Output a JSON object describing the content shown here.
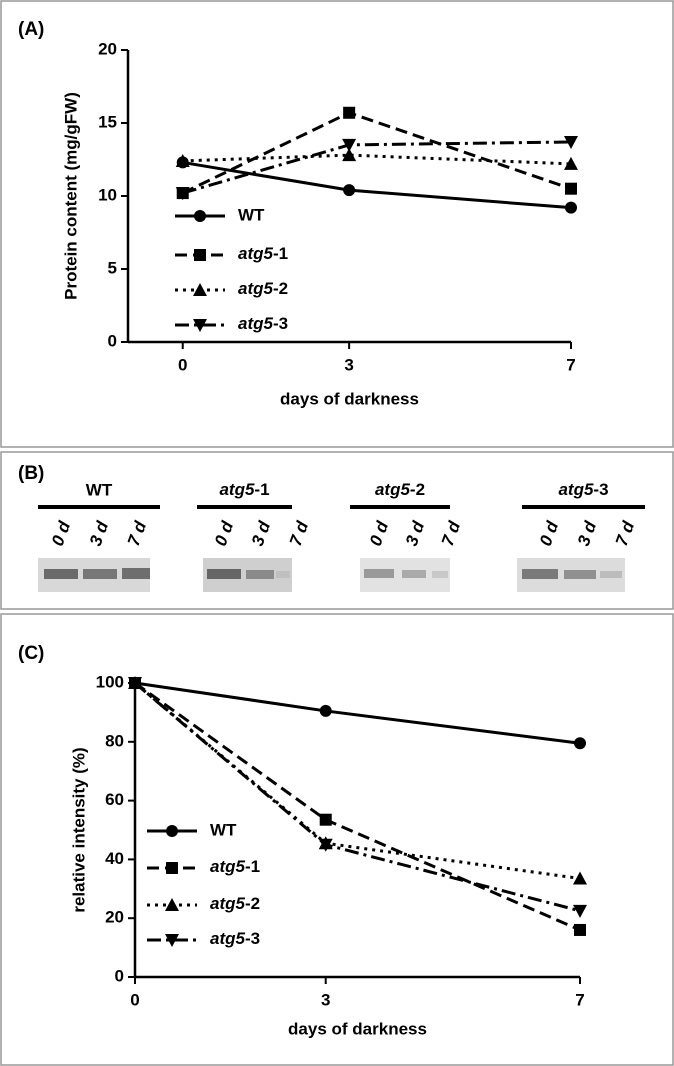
{
  "panels": [
    "(A)",
    "(B)",
    "(C)"
  ],
  "gel": {
    "groups": [
      {
        "name": "WT",
        "lanes": [
          "0 d",
          "3 d",
          "7 d"
        ]
      },
      {
        "name": "atg5-1",
        "lanes": [
          "0 d",
          "3 d",
          "7 d"
        ]
      },
      {
        "name": "atg5-2",
        "lanes": [
          "0 d",
          "3 d",
          "7 d"
        ]
      },
      {
        "name": "atg5-3",
        "lanes": [
          "0 d",
          "3 d",
          "7 d"
        ]
      }
    ]
  },
  "chart_data": [
    {
      "type": "line",
      "xlabel": "days of darkness",
      "ylabel": "Protein content (mg/gFW)",
      "x": [
        0,
        3,
        7
      ],
      "xlim": [
        -0.5,
        7
      ],
      "xticks": [
        0,
        3,
        7
      ],
      "ylim": [
        0,
        20
      ],
      "yticks": [
        0,
        5,
        10,
        15,
        20
      ],
      "series": [
        {
          "name": "WT",
          "color": "#000000",
          "marker": "circle",
          "dash": "solid",
          "values": [
            12.3,
            10.4,
            9.2
          ]
        },
        {
          "name": "atg5-1",
          "color": "#000000",
          "marker": "square",
          "dash": "dashed",
          "values": [
            10.2,
            15.7,
            10.5
          ]
        },
        {
          "name": "atg5-2",
          "color": "#000000",
          "marker": "triangle-up",
          "dash": "dotted",
          "values": [
            12.4,
            12.8,
            12.2
          ]
        },
        {
          "name": "atg5-3",
          "color": "#000000",
          "marker": "triangle-down",
          "dash": "dashdot",
          "values": [
            10.2,
            13.5,
            13.7
          ]
        }
      ]
    },
    {
      "type": "line",
      "xlabel": "days of darkness",
      "ylabel": "relative intensity (%)",
      "x": [
        0,
        3,
        7
      ],
      "xlim": [
        0,
        7
      ],
      "xticks": [
        0,
        3,
        7
      ],
      "ylim": [
        0,
        100
      ],
      "yticks": [
        0,
        20,
        40,
        60,
        80,
        100
      ],
      "series": [
        {
          "name": "WT",
          "color": "#000000",
          "marker": "circle",
          "dash": "solid",
          "values": [
            100,
            90.5,
            79.5
          ]
        },
        {
          "name": "atg5-1",
          "color": "#000000",
          "marker": "square",
          "dash": "dashed",
          "values": [
            100,
            53.5,
            16
          ]
        },
        {
          "name": "atg5-2",
          "color": "#000000",
          "marker": "triangle-up",
          "dash": "dotted",
          "values": [
            100,
            45.5,
            33.5
          ]
        },
        {
          "name": "atg5-3",
          "color": "#000000",
          "marker": "triangle-down",
          "dash": "dashdot",
          "values": [
            100,
            45,
            22.5
          ]
        }
      ]
    }
  ]
}
